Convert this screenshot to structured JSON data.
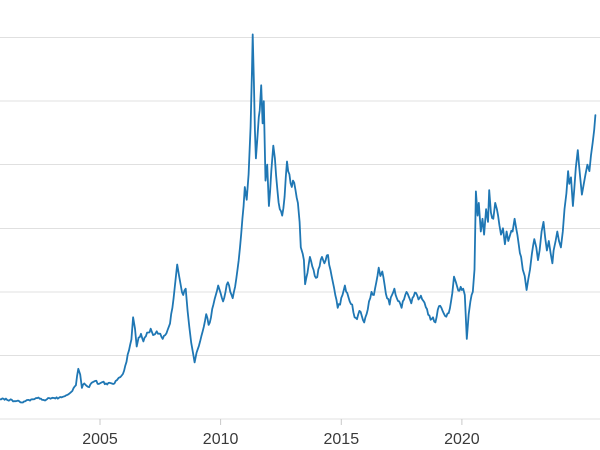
{
  "colors": {
    "background": "#ffffff",
    "line": "#1f77b4",
    "grid": "#e0e0e0",
    "tick": "#c9c9c9",
    "tick_label": "#3a3a3a"
  },
  "chart_data": {
    "type": "line",
    "title": "",
    "xlabel": "",
    "ylabel": "",
    "legend": "none",
    "grid": "horizontal-only",
    "x_tick_labels": [
      "2005",
      "2010",
      "2015",
      "2020"
    ],
    "x_ticks": [
      2005,
      2010,
      2015,
      2020
    ],
    "x_range": [
      2000.85,
      2025.55
    ],
    "y_axis_labels_visible": false,
    "y_gridline_units": [
      0,
      10,
      20,
      30,
      40,
      50,
      60
    ],
    "note": "Y axis is unlabeled in the screenshot; series values are estimated in gridline units where adjacent horizontal gridlines are 10 units apart and the bottom gridline is 0.",
    "series": [
      {
        "name": "series-1",
        "color": "#1f77b4",
        "points": [
          [
            2000.85,
            3.1
          ],
          [
            2001.0,
            3.2
          ],
          [
            2001.15,
            3.0
          ],
          [
            2001.3,
            3.1
          ],
          [
            2001.45,
            2.8
          ],
          [
            2001.6,
            2.9
          ],
          [
            2001.75,
            2.6
          ],
          [
            2001.9,
            2.8
          ],
          [
            2002.05,
            3.0
          ],
          [
            2002.2,
            3.1
          ],
          [
            2002.35,
            3.3
          ],
          [
            2002.5,
            3.2
          ],
          [
            2002.65,
            3.0
          ],
          [
            2002.8,
            3.1
          ],
          [
            2002.95,
            3.2
          ],
          [
            2003.1,
            3.3
          ],
          [
            2003.25,
            3.2
          ],
          [
            2003.4,
            3.4
          ],
          [
            2003.55,
            3.6
          ],
          [
            2003.7,
            3.9
          ],
          [
            2003.85,
            4.4
          ],
          [
            2004.0,
            5.3
          ],
          [
            2004.1,
            7.9
          ],
          [
            2004.18,
            7.0
          ],
          [
            2004.25,
            4.9
          ],
          [
            2004.35,
            5.6
          ],
          [
            2004.45,
            5.2
          ],
          [
            2004.55,
            5.0
          ],
          [
            2004.65,
            5.7
          ],
          [
            2004.8,
            6.0
          ],
          [
            2004.95,
            5.5
          ],
          [
            2005.1,
            5.8
          ],
          [
            2005.25,
            5.6
          ],
          [
            2005.4,
            5.7
          ],
          [
            2005.55,
            5.5
          ],
          [
            2005.7,
            6.1
          ],
          [
            2005.85,
            6.6
          ],
          [
            2006.0,
            7.6
          ],
          [
            2006.1,
            9.0
          ],
          [
            2006.2,
            10.8
          ],
          [
            2006.3,
            12.5
          ],
          [
            2006.37,
            16.0
          ],
          [
            2006.45,
            14.2
          ],
          [
            2006.52,
            11.4
          ],
          [
            2006.6,
            12.8
          ],
          [
            2006.7,
            13.4
          ],
          [
            2006.8,
            12.2
          ],
          [
            2006.9,
            13.0
          ],
          [
            2007.0,
            13.6
          ],
          [
            2007.1,
            14.2
          ],
          [
            2007.2,
            13.2
          ],
          [
            2007.35,
            13.8
          ],
          [
            2007.5,
            13.4
          ],
          [
            2007.6,
            12.6
          ],
          [
            2007.7,
            13.2
          ],
          [
            2007.8,
            14.0
          ],
          [
            2007.9,
            15.0
          ],
          [
            2008.0,
            17.5
          ],
          [
            2008.1,
            20.8
          ],
          [
            2008.2,
            24.3
          ],
          [
            2008.28,
            22.5
          ],
          [
            2008.35,
            21.0
          ],
          [
            2008.45,
            19.5
          ],
          [
            2008.55,
            20.5
          ],
          [
            2008.63,
            17.0
          ],
          [
            2008.7,
            14.5
          ],
          [
            2008.78,
            12.0
          ],
          [
            2008.85,
            10.5
          ],
          [
            2008.92,
            8.9
          ],
          [
            2009.0,
            10.4
          ],
          [
            2009.1,
            11.5
          ],
          [
            2009.2,
            13.0
          ],
          [
            2009.3,
            14.5
          ],
          [
            2009.4,
            16.5
          ],
          [
            2009.5,
            14.8
          ],
          [
            2009.6,
            16.0
          ],
          [
            2009.7,
            18.0
          ],
          [
            2009.8,
            19.5
          ],
          [
            2009.9,
            21.0
          ],
          [
            2010.0,
            19.8
          ],
          [
            2010.1,
            18.5
          ],
          [
            2010.2,
            20.0
          ],
          [
            2010.3,
            21.5
          ],
          [
            2010.4,
            20.0
          ],
          [
            2010.5,
            19.0
          ],
          [
            2010.6,
            20.8
          ],
          [
            2010.7,
            23.5
          ],
          [
            2010.8,
            27.0
          ],
          [
            2010.9,
            31.5
          ],
          [
            2011.0,
            36.5
          ],
          [
            2011.08,
            34.5
          ],
          [
            2011.16,
            38.5
          ],
          [
            2011.24,
            46.0
          ],
          [
            2011.3,
            55.0
          ],
          [
            2011.33,
            60.5
          ],
          [
            2011.38,
            53.0
          ],
          [
            2011.42,
            45.5
          ],
          [
            2011.46,
            41.0
          ],
          [
            2011.52,
            44.0
          ],
          [
            2011.58,
            47.5
          ],
          [
            2011.62,
            48.5
          ],
          [
            2011.68,
            52.5
          ],
          [
            2011.74,
            46.5
          ],
          [
            2011.79,
            50.0
          ],
          [
            2011.86,
            37.5
          ],
          [
            2011.93,
            40.0
          ],
          [
            2012.0,
            33.5
          ],
          [
            2012.1,
            39.0
          ],
          [
            2012.18,
            43.0
          ],
          [
            2012.25,
            41.0
          ],
          [
            2012.35,
            36.0
          ],
          [
            2012.45,
            33.0
          ],
          [
            2012.55,
            32.0
          ],
          [
            2012.65,
            35.0
          ],
          [
            2012.75,
            40.5
          ],
          [
            2012.85,
            38.5
          ],
          [
            2012.95,
            36.5
          ],
          [
            2013.0,
            37.5
          ],
          [
            2013.1,
            36.0
          ],
          [
            2013.2,
            34.0
          ],
          [
            2013.27,
            31.0
          ],
          [
            2013.32,
            27.0
          ],
          [
            2013.4,
            26.0
          ],
          [
            2013.45,
            25.0
          ],
          [
            2013.5,
            21.2
          ],
          [
            2013.6,
            23.0
          ],
          [
            2013.7,
            25.5
          ],
          [
            2013.8,
            24.0
          ],
          [
            2013.9,
            22.5
          ],
          [
            2014.0,
            22.3
          ],
          [
            2014.1,
            24.0
          ],
          [
            2014.2,
            25.5
          ],
          [
            2014.3,
            24.5
          ],
          [
            2014.45,
            25.8
          ],
          [
            2014.55,
            23.5
          ],
          [
            2014.65,
            21.5
          ],
          [
            2014.75,
            19.5
          ],
          [
            2014.85,
            17.5
          ],
          [
            2014.95,
            18.0
          ],
          [
            2015.05,
            19.5
          ],
          [
            2015.15,
            21.0
          ],
          [
            2015.25,
            19.8
          ],
          [
            2015.35,
            18.5
          ],
          [
            2015.45,
            18.0
          ],
          [
            2015.55,
            16.0
          ],
          [
            2015.65,
            15.7
          ],
          [
            2015.75,
            17.0
          ],
          [
            2015.85,
            16.2
          ],
          [
            2015.95,
            15.2
          ],
          [
            2016.05,
            16.5
          ],
          [
            2016.15,
            18.5
          ],
          [
            2016.25,
            20.0
          ],
          [
            2016.35,
            19.5
          ],
          [
            2016.45,
            21.5
          ],
          [
            2016.55,
            23.8
          ],
          [
            2016.62,
            22.5
          ],
          [
            2016.7,
            23.2
          ],
          [
            2016.8,
            21.0
          ],
          [
            2016.9,
            19.0
          ],
          [
            2017.0,
            18.0
          ],
          [
            2017.1,
            19.5
          ],
          [
            2017.2,
            20.5
          ],
          [
            2017.3,
            19.0
          ],
          [
            2017.4,
            18.5
          ],
          [
            2017.5,
            17.5
          ],
          [
            2017.6,
            18.8
          ],
          [
            2017.7,
            20.0
          ],
          [
            2017.8,
            19.2
          ],
          [
            2017.9,
            18.2
          ],
          [
            2018.0,
            19.3
          ],
          [
            2018.1,
            19.8
          ],
          [
            2018.2,
            18.8
          ],
          [
            2018.3,
            19.4
          ],
          [
            2018.4,
            18.6
          ],
          [
            2018.5,
            17.6
          ],
          [
            2018.6,
            16.4
          ],
          [
            2018.7,
            15.6
          ],
          [
            2018.8,
            16.0
          ],
          [
            2018.9,
            15.2
          ],
          [
            2019.0,
            17.2
          ],
          [
            2019.1,
            17.8
          ],
          [
            2019.2,
            17.0
          ],
          [
            2019.3,
            16.2
          ],
          [
            2019.4,
            16.6
          ],
          [
            2019.5,
            17.4
          ],
          [
            2019.6,
            19.8
          ],
          [
            2019.67,
            22.4
          ],
          [
            2019.75,
            21.5
          ],
          [
            2019.85,
            20.2
          ],
          [
            2019.95,
            20.8
          ],
          [
            2020.05,
            20.5
          ],
          [
            2020.12,
            19.5
          ],
          [
            2020.2,
            12.6
          ],
          [
            2020.28,
            16.5
          ],
          [
            2020.35,
            18.5
          ],
          [
            2020.45,
            20.0
          ],
          [
            2020.52,
            23.5
          ],
          [
            2020.58,
            35.8
          ],
          [
            2020.65,
            32.0
          ],
          [
            2020.7,
            34.0
          ],
          [
            2020.78,
            29.5
          ],
          [
            2020.85,
            31.5
          ],
          [
            2020.92,
            29.0
          ],
          [
            2021.0,
            33.0
          ],
          [
            2021.08,
            31.0
          ],
          [
            2021.13,
            36.0
          ],
          [
            2021.2,
            32.5
          ],
          [
            2021.3,
            31.5
          ],
          [
            2021.38,
            34.0
          ],
          [
            2021.45,
            33.0
          ],
          [
            2021.55,
            30.5
          ],
          [
            2021.62,
            29.0
          ],
          [
            2021.7,
            30.0
          ],
          [
            2021.78,
            27.5
          ],
          [
            2021.85,
            29.5
          ],
          [
            2021.92,
            28.0
          ],
          [
            2022.0,
            29.0
          ],
          [
            2022.1,
            29.5
          ],
          [
            2022.18,
            31.5
          ],
          [
            2022.25,
            30.0
          ],
          [
            2022.35,
            27.5
          ],
          [
            2022.45,
            25.5
          ],
          [
            2022.52,
            23.5
          ],
          [
            2022.6,
            22.5
          ],
          [
            2022.68,
            20.3
          ],
          [
            2022.75,
            22.0
          ],
          [
            2022.82,
            23.5
          ],
          [
            2022.9,
            26.0
          ],
          [
            2023.0,
            28.3
          ],
          [
            2023.08,
            27.0
          ],
          [
            2023.15,
            25.0
          ],
          [
            2023.22,
            26.5
          ],
          [
            2023.3,
            29.5
          ],
          [
            2023.38,
            31.0
          ],
          [
            2023.45,
            28.5
          ],
          [
            2023.52,
            26.5
          ],
          [
            2023.6,
            28.0
          ],
          [
            2023.68,
            26.0
          ],
          [
            2023.75,
            24.5
          ],
          [
            2023.8,
            26.5
          ],
          [
            2023.88,
            28.0
          ],
          [
            2023.95,
            29.5
          ],
          [
            2024.02,
            28.0
          ],
          [
            2024.1,
            27.0
          ],
          [
            2024.18,
            29.5
          ],
          [
            2024.25,
            33.0
          ],
          [
            2024.33,
            35.5
          ],
          [
            2024.4,
            39.0
          ],
          [
            2024.45,
            37.0
          ],
          [
            2024.52,
            38.0
          ],
          [
            2024.6,
            33.5
          ],
          [
            2024.65,
            36.0
          ],
          [
            2024.72,
            39.5
          ],
          [
            2024.8,
            42.3
          ],
          [
            2024.85,
            40.0
          ],
          [
            2024.9,
            38.0
          ],
          [
            2024.97,
            35.3
          ],
          [
            2025.05,
            37.0
          ],
          [
            2025.12,
            38.5
          ],
          [
            2025.2,
            40.0
          ],
          [
            2025.28,
            39.0
          ],
          [
            2025.35,
            41.5
          ],
          [
            2025.42,
            43.5
          ],
          [
            2025.48,
            45.5
          ],
          [
            2025.53,
            47.8
          ]
        ]
      }
    ],
    "texture": {
      "noise_amplitude": 1.1,
      "noise_seed": 13
    }
  }
}
